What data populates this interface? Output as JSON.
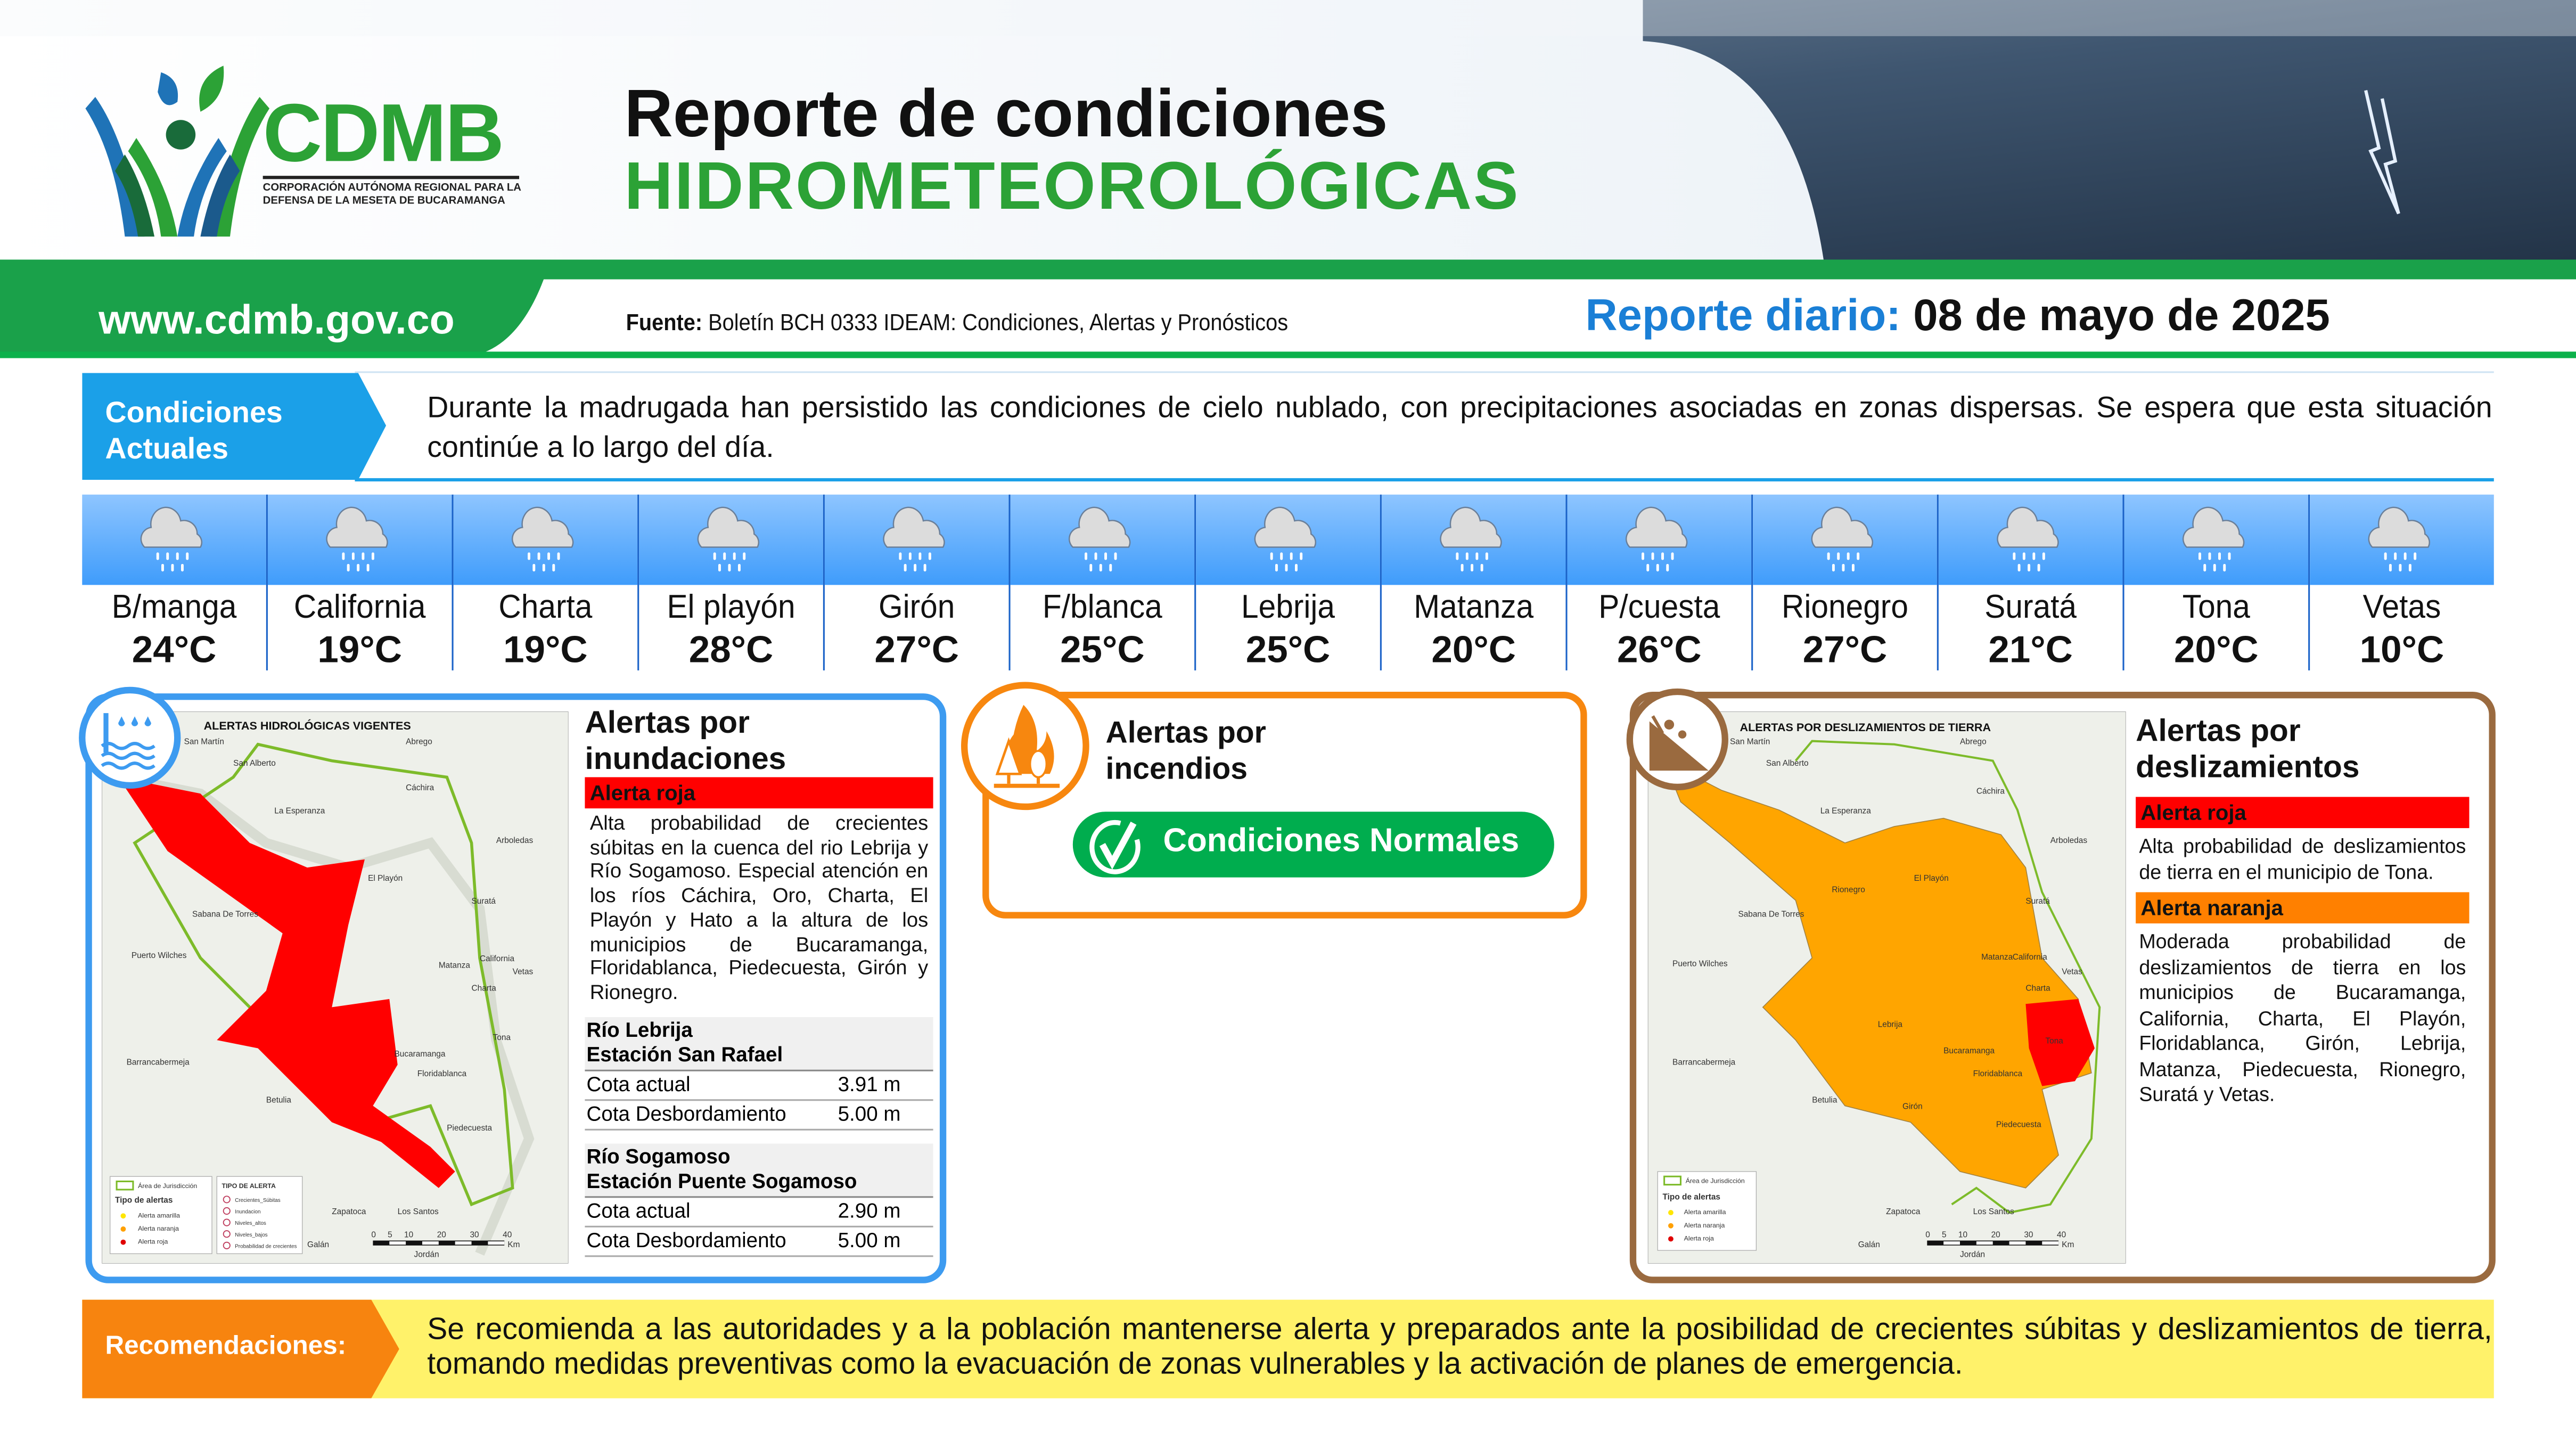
{
  "header": {
    "logo": {
      "name": "CDMB",
      "subtitle": "CORPORACIÓN AUTÓNOMA REGIONAL PARA LA DEFENSA DE LA MESETA DE BUCARAMANGA"
    },
    "title_line1": "Reporte de condiciones",
    "title_line2": "HIDROMETEOROLÓGICAS",
    "website": "www.cdmb.gov.co",
    "source_label": "Fuente:",
    "source_text": "Boletín BCH 0333 IDEAM: Condiciones, Alertas y Pronósticos",
    "report_label": "Reporte diario:",
    "report_date": "08 de mayo de 2025"
  },
  "colors": {
    "green": "#2ca236",
    "blue": "#1a7fd6",
    "cyan": "#1ba0e8",
    "red": "#ff0000",
    "orange": "#ff8000",
    "brown": "#9a6a3f",
    "yellow": "#fff26a"
  },
  "conditions": {
    "label_line1": "Condiciones",
    "label_line2": "Actuales",
    "text": "Durante la madrugada han persistido las condiciones de cielo nublado, con precipitaciones asociadas en zonas dispersas. Se espera que esta situación continúe a lo largo del día."
  },
  "weather": [
    {
      "name": "B/manga",
      "temp": "24°C",
      "icon": "rain-cloud-icon"
    },
    {
      "name": "California",
      "temp": "19°C",
      "icon": "rain-cloud-icon"
    },
    {
      "name": "Charta",
      "temp": "19°C",
      "icon": "rain-cloud-icon"
    },
    {
      "name": "El playón",
      "temp": "28°C",
      "icon": "rain-cloud-icon"
    },
    {
      "name": "Girón",
      "temp": "27°C",
      "icon": "rain-cloud-icon"
    },
    {
      "name": "F/blanca",
      "temp": "25°C",
      "icon": "rain-cloud-icon"
    },
    {
      "name": "Lebrija",
      "temp": "25°C",
      "icon": "rain-cloud-icon"
    },
    {
      "name": "Matanza",
      "temp": "20°C",
      "icon": "rain-cloud-icon"
    },
    {
      "name": "P/cuesta",
      "temp": "26°C",
      "icon": "rain-cloud-icon"
    },
    {
      "name": "Rionegro",
      "temp": "27°C",
      "icon": "rain-cloud-icon"
    },
    {
      "name": "Suratá",
      "temp": "21°C",
      "icon": "rain-cloud-icon"
    },
    {
      "name": "Tona",
      "temp": "20°C",
      "icon": "rain-cloud-icon"
    },
    {
      "name": "Vetas",
      "temp": "10°C",
      "icon": "rain-cloud-icon"
    }
  ],
  "floods": {
    "title_line1": "Alertas por",
    "title_line2": "inundaciones",
    "alert_label": "Alerta roja",
    "alert_text": "Alta probabilidad de crecientes súbitas en la cuenca del rio Lebrija y Río Sogamoso. Especial atención en los ríos Cáchira, Oro, Charta, El Playón y Hato a la altura de los municipios de Bucaramanga, Floridablanca, Piedecuesta, Girón y Rionegro.",
    "stations": [
      {
        "river": "Río Lebrija",
        "station": "Estación San Rafael",
        "rows": [
          {
            "label": "Cota actual",
            "value": "3.91 m"
          },
          {
            "label": "Cota Desbordamiento",
            "value": "5.00 m"
          }
        ]
      },
      {
        "river": "Río Sogamoso",
        "station": "Estación Puente Sogamoso",
        "rows": [
          {
            "label": "Cota actual",
            "value": "2.90 m"
          },
          {
            "label": "Cota Desbordamiento",
            "value": "5.00 m"
          }
        ]
      }
    ],
    "map": {
      "title": "ALERTAS HIDROLÓGICAS VIGENTES",
      "places": [
        "San Martín",
        "San Alberto",
        "Abrego",
        "Cáchira",
        "La Esperanza",
        "Arboledas",
        "El Playón",
        "Suratá",
        "Sabana De Torres",
        "Puerto Wilches",
        "Matanza",
        "Charta",
        "California",
        "Vetas",
        "Barrancabermeja",
        "Tona",
        "Bucaramanga",
        "Floridablanca",
        "Betulia",
        "Piedecuesta",
        "Zapatoca",
        "Los Santos",
        "Galán",
        "Jordán"
      ],
      "legend_area": "Área de Jurisdicción",
      "legend_title": "Tipo de alertas",
      "legend_items": [
        "Alerta amarilla",
        "Alerta naranja",
        "Alerta roja"
      ],
      "type_title": "TIPO DE ALERTA",
      "type_items": [
        "Crecientes_Súbitas",
        "Inundacion",
        "Niveles_altos",
        "Niveles_bajos",
        "Probabilidad de crecientes"
      ],
      "scale": [
        "0",
        "5",
        "10",
        "20",
        "30",
        "40",
        "Km"
      ]
    }
  },
  "fires": {
    "title_line1": "Alertas por",
    "title_line2": "incendios",
    "status": "Condiciones Normales"
  },
  "landslides": {
    "title_line1": "Alertas por",
    "title_line2": "deslizamientos",
    "alerts": [
      {
        "label": "Alerta roja",
        "color": "#ff0000",
        "text": "Alta probabilidad de deslizamientos de tierra en el municipio de Tona."
      },
      {
        "label": "Alerta naranja",
        "color": "#ff8000",
        "text": "Moderada probabilidad de deslizamientos de tierra en los municipios de Bucaramanga, California, Charta, El Playón, Floridablanca, Girón, Lebrija, Matanza, Piedecuesta, Rionegro, Suratá y Vetas."
      }
    ],
    "map": {
      "title": "ALERTAS POR DESLIZAMIENTOS DE TIERRA",
      "places": [
        "San Martín",
        "San Alberto",
        "Abrego",
        "Cáchira",
        "La Esperanza",
        "Arboledas",
        "Rionegro",
        "El Playón",
        "Suratá",
        "Sabana De Torres",
        "Puerto Wilches",
        "Matanza",
        "California",
        "Vetas",
        "Charta",
        "Lebrija",
        "Bucaramanga",
        "Tona",
        "Floridablanca",
        "Barrancabermeja",
        "Betulia",
        "Girón",
        "Piedecuesta",
        "Zapatoca",
        "Los Santos",
        "Galán",
        "Jordán"
      ],
      "legend_area": "Área de Jurisdicción",
      "legend_title": "Tipo de alertas",
      "legend_items": [
        "Alerta amarilla",
        "Alerta naranja",
        "Alerta roja"
      ],
      "scale": [
        "0",
        "5",
        "10",
        "20",
        "30",
        "40",
        "Km"
      ]
    }
  },
  "recommendations": {
    "label": "Recomendaciones:",
    "text": "Se recomienda a las autoridades y a la población mantenerse alerta y preparados ante la posibilidad de crecientes súbitas y deslizamientos de tierra, tomando medidas preventivas como la evacuación de zonas vulnerables y la activación de planes de emergencia."
  }
}
